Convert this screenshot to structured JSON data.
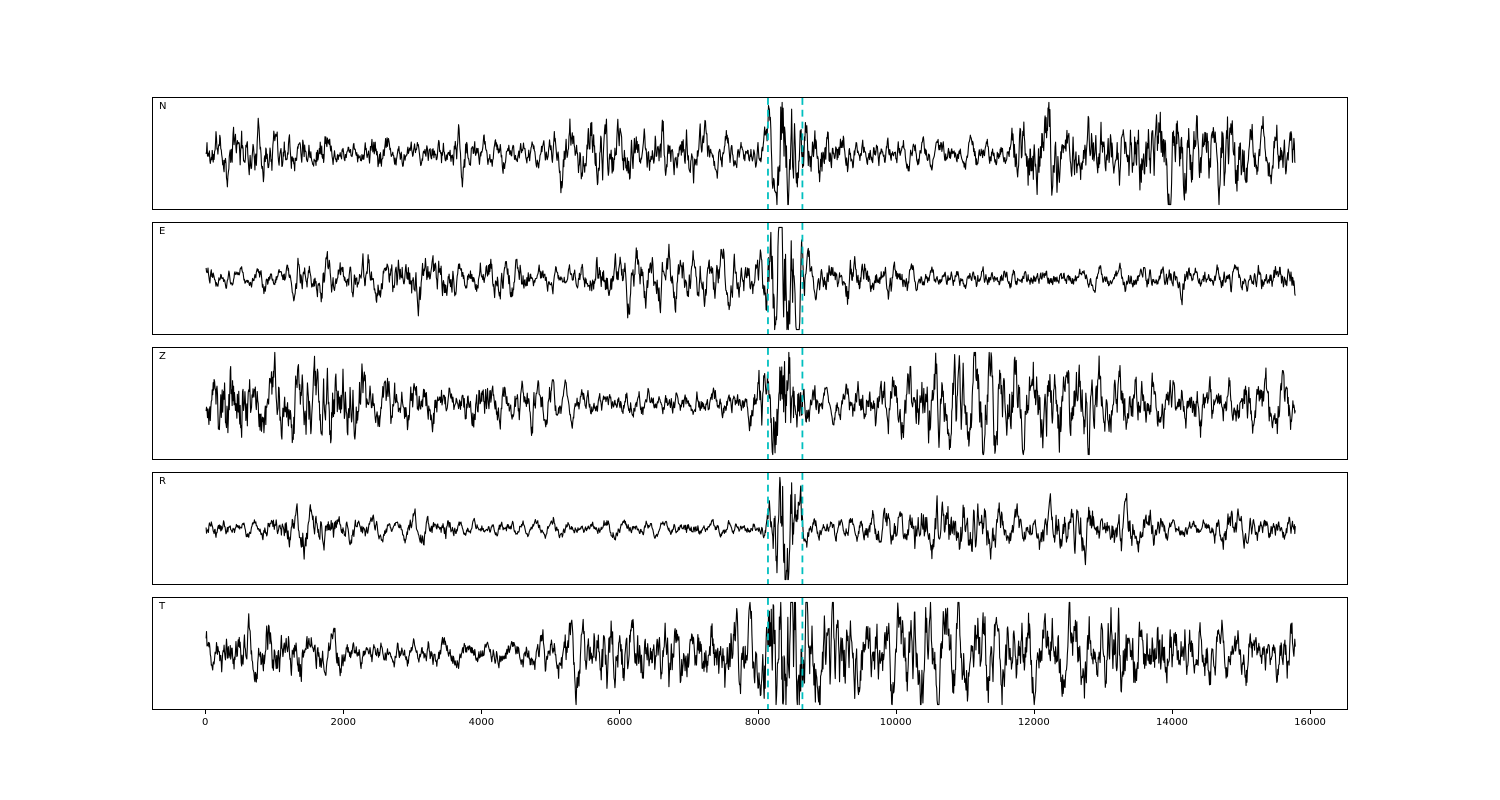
{
  "figure": {
    "background": "#ffffff",
    "title": ""
  },
  "chart_data": {
    "type": "line",
    "kind": "multi-panel seismic waveform traces",
    "title": "",
    "xlabel": "",
    "ylabel": "",
    "grid": false,
    "legend": null,
    "trace_color": "#000000",
    "marker_color": "#00bfbf",
    "marker_style": "dashed",
    "marker_lines": [
      8150,
      8650
    ],
    "event_x": 8400,
    "x_range": [
      -770,
      16550
    ],
    "data_x_range": [
      0,
      15800
    ],
    "xticks": [
      0,
      2000,
      4000,
      6000,
      8000,
      10000,
      12000,
      14000,
      16000
    ],
    "xtick_labels": [
      "0",
      "2000",
      "4000",
      "6000",
      "8000",
      "10000",
      "12000",
      "14000",
      "16000"
    ],
    "panels": [
      {
        "label": "N",
        "seed": 11,
        "base_amp": 1.0,
        "post_gain": 0.15,
        "burst_amp": 1.6,
        "burst_width": 260
      },
      {
        "label": "E",
        "seed": 22,
        "base_amp": 0.6,
        "post_gain": 0.4,
        "burst_amp": 3.2,
        "burst_width": 200
      },
      {
        "label": "Z",
        "seed": 33,
        "base_amp": 1.1,
        "post_gain": 0.1,
        "burst_amp": 1.4,
        "burst_width": 260
      },
      {
        "label": "R",
        "seed": 44,
        "base_amp": 0.55,
        "post_gain": 0.35,
        "burst_amp": 3.4,
        "burst_width": 170
      },
      {
        "label": "T",
        "seed": 55,
        "base_amp": 1.0,
        "post_gain": 0.2,
        "burst_amp": 1.8,
        "burst_width": 240
      }
    ]
  }
}
